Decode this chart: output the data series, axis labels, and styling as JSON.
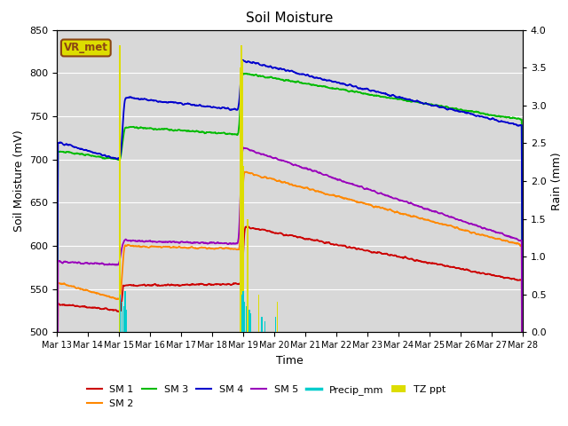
{
  "title": "Soil Moisture",
  "xlabel": "Time",
  "ylabel_left": "Soil Moisture (mV)",
  "ylabel_right": "Rain (mm)",
  "ylim_left": [
    500,
    850
  ],
  "ylim_right": [
    0.0,
    4.0
  ],
  "xlim": [
    0,
    15
  ],
  "background_color": "#ffffff",
  "plot_bg_color": "#d8d8d8",
  "grid_color": "#ffffff",
  "title_fontsize": 11,
  "label_fontsize": 9,
  "tick_fontsize": 8,
  "colors": {
    "SM1": "#cc0000",
    "SM2": "#ff8800",
    "SM3": "#00bb00",
    "SM4": "#0000cc",
    "SM5": "#9900bb",
    "Precip": "#00cccc",
    "TZ_ppt": "#dddd00"
  },
  "xtick_labels": [
    "Mar 13",
    "Mar 14",
    "Mar 15",
    "Mar 16",
    "Mar 17",
    "Mar 18",
    "Mar 19",
    "Mar 20",
    "Mar 21",
    "Mar 22",
    "Mar 23",
    "Mar 24",
    "Mar 25",
    "Mar 26",
    "Mar 27",
    "Mar 28"
  ],
  "annotation_text": "VR_met",
  "annotation_color": "#8B4513",
  "annotation_bg": "#dddd00"
}
